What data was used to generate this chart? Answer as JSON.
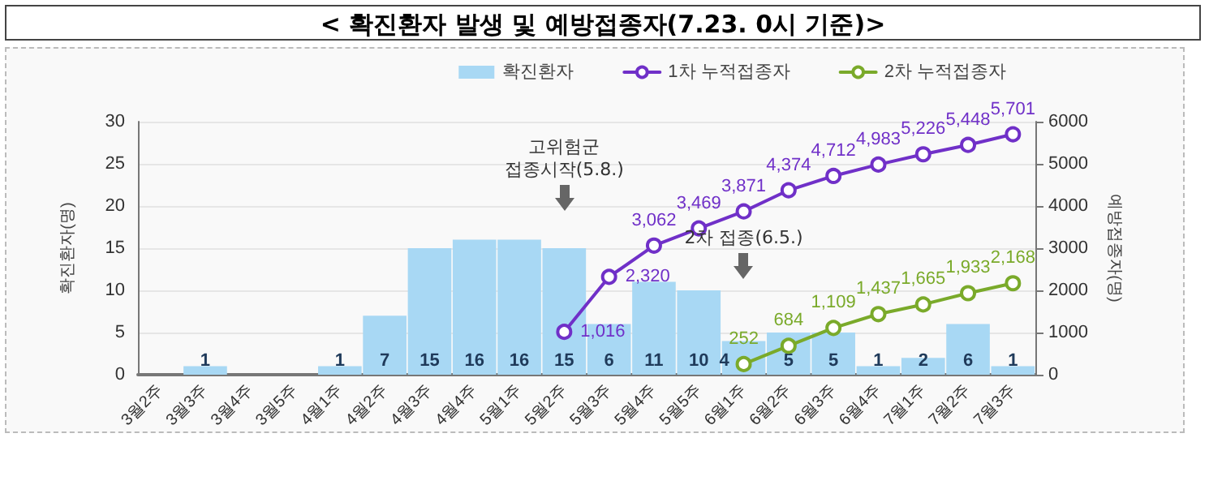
{
  "chart_data": {
    "type": "bar",
    "title": "< 확진환자 발생 및 예방접종자(7.23. 0시 기준)>",
    "ylabel": "확진환자(명)",
    "y2label": "예방접종자(명)",
    "categories": [
      "3월2주",
      "3월3주",
      "3월4주",
      "3월5주",
      "4월1주",
      "4월2주",
      "4월3주",
      "4월4주",
      "5월1주",
      "5월2주",
      "5월3주",
      "5월4주",
      "5월5주",
      "6월1주",
      "6월2주",
      "6월3주",
      "6월4주",
      "7월1주",
      "7월2주",
      "7월3주"
    ],
    "series": [
      {
        "name": "확진환자",
        "color": "#a8d8f4",
        "values": [
          0,
          1,
          0,
          0,
          1,
          7,
          15,
          16,
          16,
          15,
          6,
          11,
          10,
          4,
          5,
          5,
          1,
          2,
          6,
          1
        ],
        "value_labels": [
          null,
          "1",
          null,
          null,
          "1",
          "7",
          "15",
          "16",
          "16",
          "15",
          "6",
          "11",
          "10",
          "4",
          "5",
          "5",
          "1",
          "2",
          "6",
          "1"
        ]
      },
      {
        "name": "1차 누적접종자",
        "type": "line",
        "axis": "y2",
        "color": "#7030c8",
        "values": [
          null,
          null,
          null,
          null,
          null,
          null,
          null,
          null,
          null,
          1016,
          2320,
          3062,
          3469,
          3871,
          4374,
          4712,
          4983,
          5226,
          5448,
          5701
        ],
        "value_labels": [
          null,
          null,
          null,
          null,
          null,
          null,
          null,
          null,
          null,
          "1,016",
          "2,320",
          "3,062",
          "3,469",
          "3,871",
          "4,374",
          "4,712",
          "4,983",
          "5,226",
          "5,448",
          "5,701"
        ]
      },
      {
        "name": "2차 누적접종자",
        "type": "line",
        "axis": "y2",
        "color": "#7aaa2a",
        "values": [
          null,
          null,
          null,
          null,
          null,
          null,
          null,
          null,
          null,
          null,
          null,
          null,
          null,
          252,
          684,
          1109,
          1437,
          1665,
          1933,
          2168
        ],
        "value_labels": [
          null,
          null,
          null,
          null,
          null,
          null,
          null,
          null,
          null,
          null,
          null,
          null,
          null,
          "252",
          "684",
          "1,109",
          "1,437",
          "1,665",
          "1,933",
          "2,168"
        ]
      }
    ],
    "ylim": [
      0,
      30
    ],
    "yticks": [
      0,
      5,
      10,
      15,
      20,
      25,
      30
    ],
    "y2lim": [
      0,
      6000
    ],
    "y2ticks": [
      0,
      1000,
      2000,
      3000,
      4000,
      5000,
      6000
    ],
    "annotations": [
      "고위험군\n접종시작(5.8.)",
      "2차 접종(6.5.)"
    ],
    "grid": "y",
    "legend": "top right",
    "marker": "circle",
    "line_style": "solid"
  }
}
